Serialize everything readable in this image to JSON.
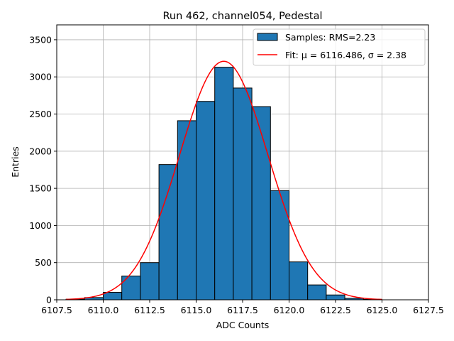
{
  "chart_data": {
    "type": "bar",
    "title": "Run 462, channel054, Pedestal",
    "xlabel": "ADC Counts",
    "ylabel": "Entries",
    "xlim": [
      6107.5,
      6127.5
    ],
    "ylim": [
      0,
      3700
    ],
    "xticks": [
      6107.5,
      6110.0,
      6112.5,
      6115.0,
      6117.5,
      6120.0,
      6122.5,
      6125.0,
      6127.5
    ],
    "xtick_labels": [
      "6107.5",
      "6110.0",
      "6112.5",
      "6115.0",
      "6117.5",
      "6120.0",
      "6122.5",
      "6125.0",
      "6127.5"
    ],
    "yticks": [
      0,
      500,
      1000,
      1500,
      2000,
      2500,
      3000,
      3500
    ],
    "ytick_labels": [
      "0",
      "500",
      "1000",
      "1500",
      "2000",
      "2500",
      "3000",
      "3500"
    ],
    "grid": true,
    "legend_position": "top-right",
    "bin_width": 1,
    "bins": [
      {
        "left": 6108,
        "count": 8
      },
      {
        "left": 6109,
        "count": 30
      },
      {
        "left": 6110,
        "count": 100
      },
      {
        "left": 6111,
        "count": 320
      },
      {
        "left": 6112,
        "count": 500
      },
      {
        "left": 6113,
        "count": 1820
      },
      {
        "left": 6114,
        "count": 2410
      },
      {
        "left": 6115,
        "count": 2670
      },
      {
        "left": 6116,
        "count": 3130
      },
      {
        "left": 6117,
        "count": 2850
      },
      {
        "left": 6118,
        "count": 2600
      },
      {
        "left": 6119,
        "count": 1470
      },
      {
        "left": 6120,
        "count": 510
      },
      {
        "left": 6121,
        "count": 200
      },
      {
        "left": 6122,
        "count": 65
      },
      {
        "left": 6123,
        "count": 20
      },
      {
        "left": 6124,
        "count": 6
      }
    ],
    "fit": {
      "mu": 6116.486,
      "sigma": 2.38,
      "amplitude": 3210,
      "x_range": [
        6108,
        6125
      ]
    },
    "series": [
      {
        "name": "Samples: RMS=2.23",
        "kind": "histogram",
        "color": "#1f77b4"
      },
      {
        "name": "Fit: μ = 6116.486, σ = 2.38",
        "kind": "line",
        "color": "#ff0000"
      }
    ]
  }
}
